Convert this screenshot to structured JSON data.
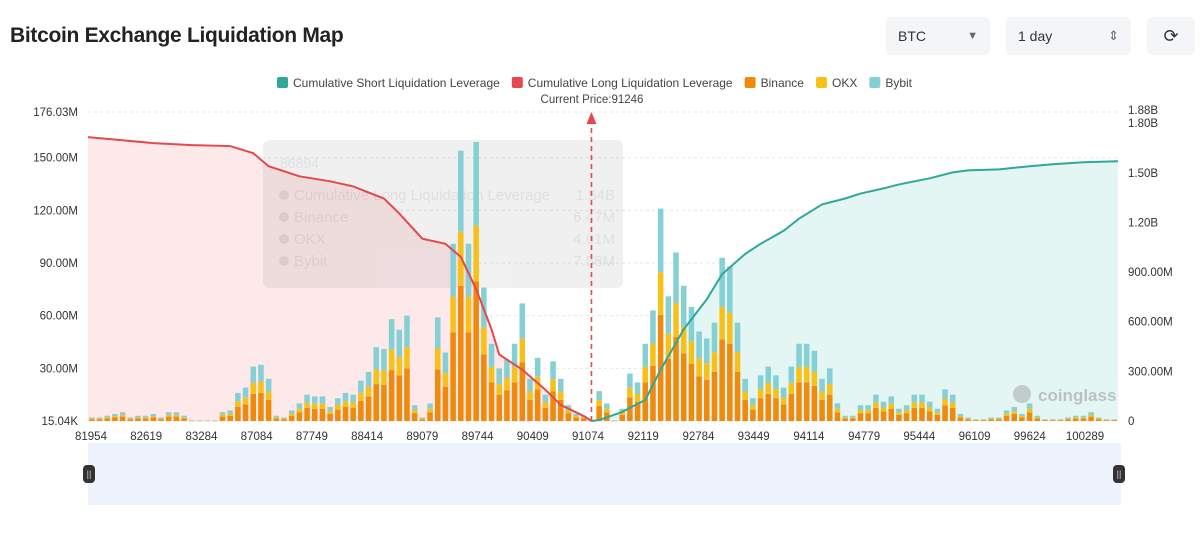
{
  "header": {
    "title": "Bitcoin Exchange Liquidation Map",
    "coin_select": "BTC",
    "range_select": "1 day",
    "refresh_icon": "refresh-icon"
  },
  "colors": {
    "short": "#2fa89a",
    "long": "#e5484d",
    "binance": "#f08a0c",
    "okx": "#f8c11a",
    "bybit": "#85d0d4"
  },
  "tooltip_ghost": {
    "price": "86894",
    "rows": [
      {
        "label": "Cumulative Long Liquidation Leverage",
        "value": "1.54B"
      },
      {
        "label": "Binance",
        "value": "6.47M"
      },
      {
        "label": "OKX",
        "value": "4.01M"
      },
      {
        "label": "Bybit",
        "value": "7.58M"
      }
    ]
  },
  "watermark": "coinglass",
  "chart_data": {
    "type": "bar",
    "legend": [
      "Cumulative Short Liquidation Leverage",
      "Cumulative Long Liquidation Leverage",
      "Binance",
      "OKX",
      "Bybit"
    ],
    "legend_position": "top-center",
    "current_price_label": "Current Price:91246",
    "current_price_bar_index": 65,
    "categories": [
      "81954",
      "82619",
      "83284",
      "87084",
      "87749",
      "88414",
      "89079",
      "89744",
      "90409",
      "91074",
      "92119",
      "92784",
      "93449",
      "94114",
      "94779",
      "95444",
      "96109",
      "99624",
      "100289"
    ],
    "left_axis": {
      "ticks": [
        "176.03M",
        "150.00M",
        "120.00M",
        "90.00M",
        "60.00M",
        "30.00M",
        "15.04K"
      ],
      "tick_values": [
        176.03,
        150,
        120,
        90,
        60,
        30,
        0
      ],
      "unit": "M",
      "ylim": [
        0,
        176.03
      ]
    },
    "right_axis": {
      "ticks": [
        "1.88B",
        "1.80B",
        "1.50B",
        "1.20B",
        "900.00M",
        "600.00M",
        "300.00M",
        "0"
      ],
      "tick_values": [
        1880,
        1800,
        1500,
        1200,
        900,
        600,
        300,
        0
      ],
      "unit": "M",
      "ylim": [
        0,
        1880
      ]
    },
    "bar_totals_M": [
      2,
      2,
      3,
      4,
      5,
      2,
      3,
      3,
      4,
      2,
      5,
      5,
      3,
      0.2,
      0.2,
      0.3,
      0.3,
      5,
      6,
      16,
      19,
      31,
      32,
      24,
      3,
      2,
      6,
      10,
      15,
      14,
      14,
      8,
      13,
      16,
      15,
      23,
      28,
      42,
      41,
      58,
      52,
      60,
      9,
      2,
      10,
      59,
      39,
      101,
      154,
      101,
      159,
      76,
      44,
      30,
      35,
      44,
      67,
      24,
      36,
      15,
      34,
      24,
      9,
      4,
      3,
      0.5,
      17,
      10,
      0.3,
      7,
      27,
      22,
      44,
      63,
      121,
      71,
      96,
      77,
      65,
      51,
      47,
      56,
      93,
      88,
      56,
      24,
      13,
      26,
      31,
      26,
      19,
      31,
      44,
      44,
      40,
      24,
      30,
      10,
      3,
      3,
      9,
      9,
      15,
      11,
      14,
      7,
      9,
      15,
      15,
      11,
      7,
      18,
      15,
      4,
      2,
      1,
      1,
      2,
      2,
      6,
      8,
      4,
      10,
      3,
      1,
      1,
      1,
      2,
      3,
      3,
      5,
      2,
      1,
      1
    ],
    "exchange_share": {
      "binance": 0.5,
      "okx": 0.2,
      "bybit": 0.3
    },
    "long_cumulative_M": [
      [
        0,
        1716
      ],
      [
        8,
        1680
      ],
      [
        13,
        1668
      ],
      [
        18,
        1662
      ],
      [
        21,
        1619
      ],
      [
        23,
        1540
      ],
      [
        27,
        1479
      ],
      [
        31,
        1449
      ],
      [
        34,
        1418
      ],
      [
        38,
        1345
      ],
      [
        40,
        1254
      ],
      [
        43,
        1102
      ],
      [
        46,
        1071
      ],
      [
        48,
        992
      ],
      [
        50,
        797
      ],
      [
        52,
        554
      ],
      [
        53,
        402
      ],
      [
        56,
        310
      ],
      [
        59,
        189
      ],
      [
        61,
        97
      ],
      [
        64,
        30
      ],
      [
        65,
        0
      ]
    ],
    "short_cumulative_M": [
      [
        65,
        0
      ],
      [
        66,
        6
      ],
      [
        69,
        55
      ],
      [
        72,
        128
      ],
      [
        74,
        310
      ],
      [
        77,
        554
      ],
      [
        80,
        736
      ],
      [
        82,
        888
      ],
      [
        85,
        1010
      ],
      [
        87,
        1071
      ],
      [
        90,
        1150
      ],
      [
        92,
        1223
      ],
      [
        95,
        1309
      ],
      [
        98,
        1345
      ],
      [
        100,
        1375
      ],
      [
        103,
        1406
      ],
      [
        105,
        1430
      ],
      [
        109,
        1467
      ],
      [
        112,
        1503
      ],
      [
        114,
        1515
      ],
      [
        118,
        1521
      ],
      [
        122,
        1540
      ],
      [
        125,
        1552
      ],
      [
        129,
        1564
      ],
      [
        133,
        1570
      ]
    ]
  }
}
